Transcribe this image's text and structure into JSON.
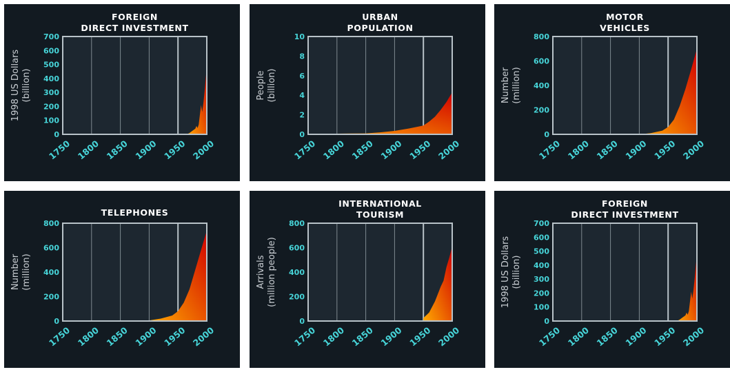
{
  "chart_data": [
    {
      "type": "area",
      "title": [
        "FOREIGN",
        "DIRECT INVESTMENT"
      ],
      "ylabel": [
        "1998 US Dollars",
        "(billion)"
      ],
      "xlim": [
        1750,
        2000
      ],
      "ylim": [
        0,
        700
      ],
      "yticks": [
        0,
        100,
        200,
        300,
        400,
        500,
        600,
        700
      ],
      "xticks": [
        1750,
        1800,
        1850,
        1900,
        1950,
        2000
      ],
      "marker_year": 1950,
      "x": [
        1965,
        1970,
        1975,
        1980,
        1982,
        1984,
        1986,
        1988,
        1990,
        1992,
        1994,
        1996,
        1998,
        2000
      ],
      "y": [
        0,
        10,
        25,
        40,
        60,
        45,
        70,
        140,
        210,
        160,
        220,
        300,
        390,
        480
      ]
    },
    {
      "type": "area",
      "title": [
        "URBAN",
        "POPULATION"
      ],
      "ylabel": [
        "People",
        "(billion)"
      ],
      "xlim": [
        1750,
        2000
      ],
      "ylim": [
        0,
        10
      ],
      "yticks": [
        0,
        2,
        4,
        6,
        8,
        10
      ],
      "xticks": [
        1750,
        1800,
        1850,
        1900,
        1950,
        2000
      ],
      "marker_year": 1950,
      "x": [
        1750,
        1800,
        1850,
        1875,
        1900,
        1925,
        1950,
        1960,
        1970,
        1980,
        1990,
        2000
      ],
      "y": [
        0.05,
        0.07,
        0.1,
        0.2,
        0.35,
        0.6,
        0.9,
        1.3,
        1.8,
        2.5,
        3.3,
        4.3
      ]
    },
    {
      "type": "area",
      "title": [
        "MOTOR",
        "VEHICLES"
      ],
      "ylabel": [
        "Number",
        "(million)"
      ],
      "xlim": [
        1750,
        2000
      ],
      "ylim": [
        0,
        800
      ],
      "yticks": [
        0,
        200,
        400,
        600,
        800
      ],
      "xticks": [
        1750,
        1800,
        1850,
        1900,
        1950,
        2000
      ],
      "marker_year": 1950,
      "x": [
        1900,
        1920,
        1940,
        1950,
        1960,
        1970,
        1980,
        1990,
        2000
      ],
      "y": [
        0,
        10,
        30,
        60,
        120,
        230,
        370,
        530,
        700
      ]
    },
    {
      "type": "area",
      "title": [
        "TELEPHONES"
      ],
      "ylabel": [
        "Number",
        "(million)"
      ],
      "xlim": [
        1750,
        2000
      ],
      "ylim": [
        0,
        800
      ],
      "yticks": [
        0,
        200,
        400,
        600,
        800
      ],
      "xticks": [
        1750,
        1800,
        1850,
        1900,
        1950,
        2000
      ],
      "marker_year": 1950,
      "x": [
        1900,
        1920,
        1940,
        1950,
        1960,
        1970,
        1980,
        1990,
        2000
      ],
      "y": [
        5,
        20,
        45,
        80,
        150,
        260,
        420,
        580,
        740
      ]
    },
    {
      "type": "area",
      "title": [
        "INTERNATIONAL",
        "TOURISM"
      ],
      "ylabel": [
        "Arrivals",
        "(million people)"
      ],
      "xlim": [
        1750,
        2000
      ],
      "ylim": [
        0,
        800
      ],
      "yticks": [
        0,
        200,
        400,
        600,
        800
      ],
      "xticks": [
        1750,
        1800,
        1850,
        1900,
        1950,
        2000
      ],
      "marker_year": 1950,
      "x": [
        1950,
        1960,
        1970,
        1975,
        1980,
        1985,
        1990,
        1995,
        2000
      ],
      "y": [
        25,
        70,
        160,
        220,
        280,
        330,
        440,
        520,
        610
      ]
    },
    {
      "type": "area",
      "title": [
        "FOREIGN",
        "DIRECT INVESTMENT"
      ],
      "ylabel": [
        "1998 US Dollars",
        "(billion)"
      ],
      "xlim": [
        1750,
        2000
      ],
      "ylim": [
        0,
        700
      ],
      "yticks": [
        0,
        100,
        200,
        300,
        400,
        500,
        600,
        700
      ],
      "xticks": [
        1750,
        1800,
        1850,
        1900,
        1950,
        2000
      ],
      "marker_year": 1950,
      "x": [
        1965,
        1970,
        1975,
        1980,
        1982,
        1984,
        1986,
        1988,
        1990,
        1992,
        1994,
        1996,
        1998,
        2000
      ],
      "y": [
        0,
        10,
        25,
        40,
        60,
        45,
        70,
        140,
        210,
        160,
        220,
        300,
        390,
        480
      ]
    }
  ],
  "colors": {
    "panel_bg": "#121a21",
    "plot_bg": "#1d2730",
    "frame": "#b9c3c9",
    "grid": "#7f8a91",
    "tick": "#47d4d8",
    "title": "#ffffff",
    "ylabel": "#c8cdd2",
    "fill_start": "#ffaa00",
    "fill_end": "#d10000"
  }
}
